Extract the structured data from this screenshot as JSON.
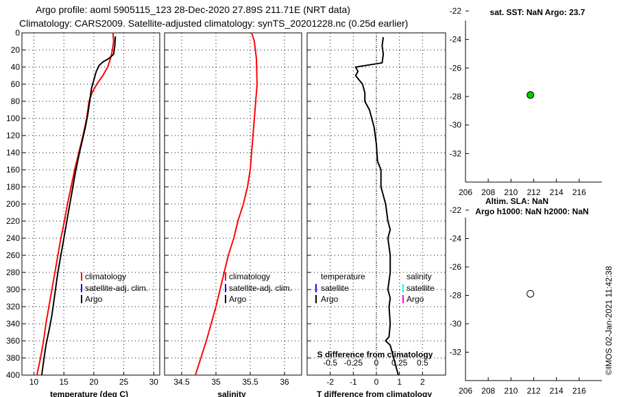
{
  "header": {
    "title_line1": "Argo profile: aoml 5905115_123 28-Dec-2020 27.89S 211.71E (NRT data)",
    "title_line2": "Climatology: CARS2009. Satellite-adjusted climatology: synTS_20201228.nc (0.25d earlier)"
  },
  "footer": {
    "watermark": "©IMOS 02-Jan-2021 11:42:38"
  },
  "colors": {
    "climatology": "#ff0000",
    "satellite": "#0000ff",
    "argo": "#000000",
    "sat_t_marker": "#00ffff",
    "argo_s_marker": "#ff00ff",
    "position_marker": "#00cc00"
  },
  "chart_data": [
    {
      "id": "temperature",
      "type": "line",
      "xlabel": "temperature (deg C)",
      "xlim": [
        8,
        31
      ],
      "xticks": [
        10,
        15,
        20,
        25,
        30
      ],
      "ylim": [
        0,
        400
      ],
      "yticks": [
        0,
        20,
        40,
        60,
        80,
        100,
        120,
        140,
        160,
        180,
        200,
        220,
        240,
        260,
        280,
        300,
        320,
        340,
        360,
        380,
        400
      ],
      "grid": true,
      "legend": {
        "position": "bottom-right",
        "entries": [
          "climatology",
          "satellite-adj. clim.",
          "Argo"
        ]
      },
      "series": [
        {
          "name": "climatology",
          "color": "#ff0000",
          "points": [
            [
              23.2,
              0
            ],
            [
              23.3,
              10
            ],
            [
              23.1,
              20
            ],
            [
              22.8,
              30
            ],
            [
              22.3,
              40
            ],
            [
              21.5,
              50
            ],
            [
              20.5,
              60
            ],
            [
              19.7,
              70
            ],
            [
              19.2,
              80
            ],
            [
              18.8,
              100
            ],
            [
              18.2,
              120
            ],
            [
              17.5,
              140
            ],
            [
              16.8,
              160
            ],
            [
              16.2,
              180
            ],
            [
              15.6,
              200
            ],
            [
              15.1,
              220
            ],
            [
              14.5,
              240
            ],
            [
              14.0,
              260
            ],
            [
              13.5,
              280
            ],
            [
              13.0,
              300
            ],
            [
              12.5,
              320
            ],
            [
              12.0,
              340
            ],
            [
              11.6,
              360
            ],
            [
              11.1,
              380
            ],
            [
              10.5,
              400
            ]
          ]
        },
        {
          "name": "Argo",
          "color": "#000000",
          "points": [
            [
              23.6,
              4
            ],
            [
              23.5,
              15
            ],
            [
              23.3,
              25
            ],
            [
              22.5,
              30
            ],
            [
              21.5,
              34
            ],
            [
              20.9,
              38
            ],
            [
              20.4,
              45
            ],
            [
              20.0,
              55
            ],
            [
              19.6,
              65
            ],
            [
              19.3,
              80
            ],
            [
              19.0,
              95
            ],
            [
              18.6,
              110
            ],
            [
              18.1,
              125
            ],
            [
              17.6,
              140
            ],
            [
              17.0,
              160
            ],
            [
              16.5,
              180
            ],
            [
              16.0,
              200
            ],
            [
              15.5,
              220
            ],
            [
              15.0,
              240
            ],
            [
              14.5,
              260
            ],
            [
              14.0,
              280
            ],
            [
              13.6,
              300
            ],
            [
              13.4,
              310
            ],
            [
              13.0,
              330
            ],
            [
              12.6,
              345
            ],
            [
              12.0,
              365
            ],
            [
              11.7,
              380
            ],
            [
              11.3,
              400
            ]
          ]
        }
      ]
    },
    {
      "id": "salinity",
      "type": "line",
      "xlabel": "salinity",
      "xlim": [
        34.25,
        36.25
      ],
      "xticks": [
        34.5,
        35,
        35.5,
        36
      ],
      "ylim": [
        0,
        400
      ],
      "grid": true,
      "legend": {
        "position": "bottom-right",
        "entries": [
          "climatology",
          "satellite-adj. clim.",
          "Argo"
        ]
      },
      "series": [
        {
          "name": "climatology",
          "color": "#ff0000",
          "points": [
            [
              35.52,
              0
            ],
            [
              35.56,
              10
            ],
            [
              35.59,
              30
            ],
            [
              35.6,
              60
            ],
            [
              35.58,
              80
            ],
            [
              35.56,
              100
            ],
            [
              35.54,
              120
            ],
            [
              35.52,
              140
            ],
            [
              35.5,
              160
            ],
            [
              35.46,
              180
            ],
            [
              35.4,
              200
            ],
            [
              35.32,
              220
            ],
            [
              35.26,
              240
            ],
            [
              35.18,
              260
            ],
            [
              35.12,
              280
            ],
            [
              35.06,
              300
            ],
            [
              35.0,
              320
            ],
            [
              34.93,
              340
            ],
            [
              34.86,
              360
            ],
            [
              34.78,
              380
            ],
            [
              34.7,
              400
            ]
          ]
        }
      ]
    },
    {
      "id": "differences",
      "type": "line",
      "xlabel": "T difference from climatology",
      "top_label": "S difference from climatology",
      "xlim": [
        -3,
        3
      ],
      "xticks": [
        -2,
        -1,
        0,
        1,
        2
      ],
      "top_xticks": [
        -0.5,
        -0.25,
        0,
        0.25,
        0.5
      ],
      "ylim": [
        0,
        400
      ],
      "grid": true,
      "legend_left": {
        "heading": "temperature",
        "entries": [
          "satellite",
          "Argo"
        ]
      },
      "legend_right": {
        "heading": "salinity",
        "entries": [
          "satellite",
          "Argo"
        ]
      },
      "series": [
        {
          "name": "T difference",
          "color": "#000000",
          "points": [
            [
              0.3,
              5
            ],
            [
              0.25,
              15
            ],
            [
              0.3,
              25
            ],
            [
              0.25,
              35
            ],
            [
              -0.9,
              40
            ],
            [
              -0.8,
              45
            ],
            [
              -0.9,
              50
            ],
            [
              -0.6,
              60
            ],
            [
              -0.5,
              70
            ],
            [
              -0.5,
              80
            ],
            [
              -0.3,
              90
            ],
            [
              -0.2,
              100
            ],
            [
              -0.1,
              110
            ],
            [
              0.0,
              130
            ],
            [
              0.05,
              150
            ],
            [
              0.2,
              160
            ],
            [
              0.2,
              180
            ],
            [
              0.4,
              200
            ],
            [
              0.5,
              220
            ],
            [
              0.6,
              230
            ],
            [
              0.5,
              240
            ],
            [
              0.6,
              260
            ],
            [
              0.6,
              280
            ],
            [
              0.5,
              300
            ],
            [
              0.6,
              310
            ],
            [
              0.55,
              320
            ],
            [
              0.6,
              340
            ],
            [
              0.55,
              355
            ],
            [
              0.4,
              360
            ],
            [
              0.6,
              365
            ],
            [
              0.7,
              375
            ],
            [
              0.8,
              385
            ],
            [
              0.9,
              395
            ],
            [
              0.95,
              400
            ]
          ]
        }
      ]
    },
    {
      "id": "map_sst",
      "type": "scatter",
      "title": "sat. SST: NaN Argo: 23.7",
      "xlim": [
        206,
        218
      ],
      "xticks": [
        206,
        208,
        210,
        212,
        214,
        216
      ],
      "ylim": [
        -34,
        -22
      ],
      "yticks": [
        -22,
        -24,
        -26,
        -28,
        -30,
        -32
      ],
      "points": [
        {
          "x": 211.71,
          "y": -27.89,
          "color": "#00cc00"
        }
      ]
    },
    {
      "id": "map_sla",
      "type": "scatter",
      "title_line1": "Altim. SLA: NaN",
      "title_line2": "Argo h1000: NaN h2000: NaN",
      "xlim": [
        206,
        218
      ],
      "xticks": [
        206,
        208,
        210,
        212,
        214,
        216
      ],
      "ylim": [
        -34,
        -22
      ],
      "yticks": [
        -22,
        -24,
        -26,
        -28,
        -30,
        -32
      ],
      "points": [
        {
          "x": 211.71,
          "y": -27.89,
          "color": "#ffffff"
        }
      ]
    }
  ]
}
